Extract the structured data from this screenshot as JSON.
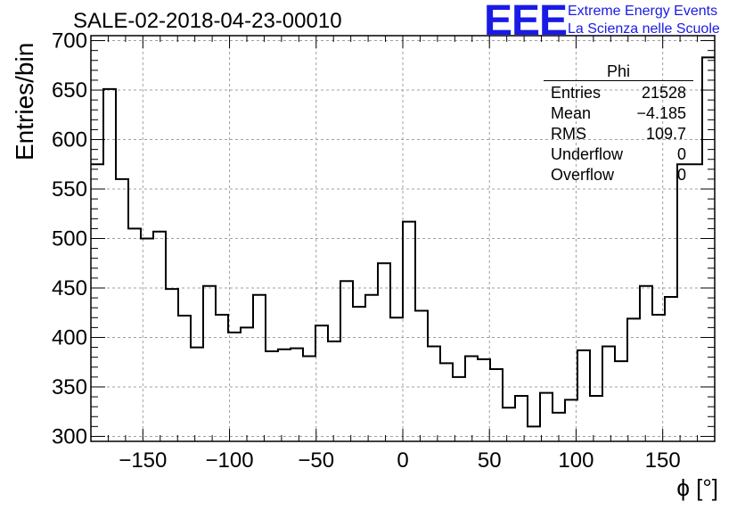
{
  "title": "SALE-02-2018-04-23-00010",
  "logo": {
    "text": "EEE",
    "line1": "Extreme Energy Events",
    "line2": "La Scienza nelle Scuole",
    "color": "#1a1ae6"
  },
  "stats": {
    "name": "Phi",
    "rows": [
      {
        "label": "Entries",
        "value": "21528"
      },
      {
        "label": "Mean",
        "value": "−4.185"
      },
      {
        "label": "RMS",
        "value": "109.7"
      },
      {
        "label": "Underflow",
        "value": "0"
      },
      {
        "label": "Overflow",
        "value": "0"
      }
    ]
  },
  "chart_data": {
    "type": "histogram-step",
    "xlabel": "ϕ [°]",
    "ylabel": "Entries/bin",
    "xlim": [
      -180,
      180
    ],
    "ylim": [
      295,
      705
    ],
    "grid": true,
    "bin_edges": [
      -180,
      -172.8,
      -165.6,
      -158.4,
      -151.2,
      -144,
      -136.8,
      -129.6,
      -122.4,
      -115.2,
      -108,
      -100.8,
      -93.6,
      -86.4,
      -79.2,
      -72,
      -64.8,
      -57.6,
      -50.4,
      -43.2,
      -36,
      -28.8,
      -21.6,
      -14.4,
      -7.2,
      0,
      7.2,
      14.4,
      21.6,
      28.8,
      36,
      43.2,
      50.4,
      57.6,
      64.8,
      72,
      79.2,
      86.4,
      93.6,
      100.8,
      108,
      115.2,
      122.4,
      129.6,
      136.8,
      144,
      151.2,
      158.4,
      165.6,
      172.8,
      180
    ],
    "values": [
      575,
      651,
      560,
      510,
      500,
      507,
      449,
      422,
      390,
      452,
      423,
      405,
      410,
      443,
      386,
      388,
      389,
      381,
      412,
      396,
      457,
      431,
      443,
      475,
      420,
      517,
      427,
      391,
      374,
      360,
      381,
      378,
      368,
      329,
      341,
      310,
      344,
      324,
      337,
      387,
      341,
      391,
      376,
      419,
      452,
      423,
      441,
      575,
      575,
      683
    ],
    "xticks": [
      -150,
      -100,
      -50,
      0,
      50,
      100,
      150
    ],
    "xtick_labels": [
      "−150",
      "−100",
      "−50",
      "0",
      "50",
      "100",
      "150"
    ],
    "yticks": [
      300,
      350,
      400,
      450,
      500,
      550,
      600,
      650,
      700
    ],
    "ytick_labels": [
      "300",
      "350",
      "400",
      "450",
      "500",
      "550",
      "600",
      "650",
      "700"
    ]
  }
}
